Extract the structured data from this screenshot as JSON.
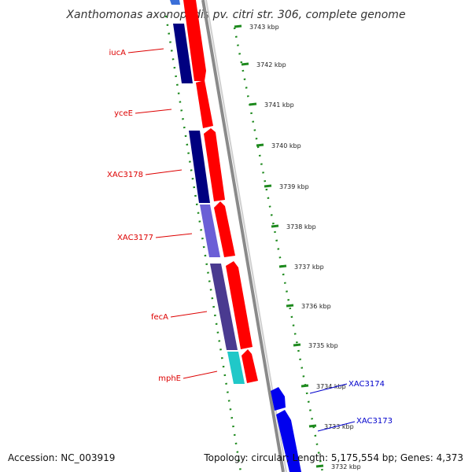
{
  "title": "Xanthomonas axonopodis pv. citri str. 306, complete genome",
  "accession": "Accession: NC_003919",
  "summary": "Topology: circular; Length: 5,175,554 bp; Genes: 4,373",
  "colors": {
    "forward_cds": "#ff0000",
    "reverse_cds": "#000080",
    "reverse_cds_light": "#6b5fd6",
    "reverse_cds_mid": "#4a3a90",
    "reverse_cds_cyan": "#20c8c8",
    "forward_blue": "#0000ee",
    "tick_green": "#1e8a1e",
    "backbone": "#888888",
    "label_red": "#dd0000",
    "label_blue": "#0000cc"
  },
  "ticks": [
    {
      "label": "3743 kbp",
      "kbp": 3743
    },
    {
      "label": "3742 kbp",
      "kbp": 3742
    },
    {
      "label": "3741 kbp",
      "kbp": 3741
    },
    {
      "label": "3740 kbp",
      "kbp": 3740
    },
    {
      "label": "3739 kbp",
      "kbp": 3739
    },
    {
      "label": "3738 kbp",
      "kbp": 3738
    },
    {
      "label": "3737 kbp",
      "kbp": 3737
    },
    {
      "label": "3736 kbp",
      "kbp": 3736
    },
    {
      "label": "3735 kbp",
      "kbp": 3735
    },
    {
      "label": "3734 kbp",
      "kbp": 3734
    },
    {
      "label": "3733 kbp",
      "kbp": 3733
    },
    {
      "label": "3732 kbp",
      "kbp": 3732
    }
  ],
  "gene_labels": [
    {
      "name": "iucA",
      "strand": "reverse"
    },
    {
      "name": "yceE",
      "strand": "reverse"
    },
    {
      "name": "XAC3178",
      "strand": "reverse"
    },
    {
      "name": "XAC3177",
      "strand": "reverse"
    },
    {
      "name": "fecA",
      "strand": "reverse"
    },
    {
      "name": "mphE",
      "strand": "reverse"
    },
    {
      "name": "XAC3174",
      "strand": "forward"
    },
    {
      "name": "XAC3173",
      "strand": "forward"
    }
  ]
}
